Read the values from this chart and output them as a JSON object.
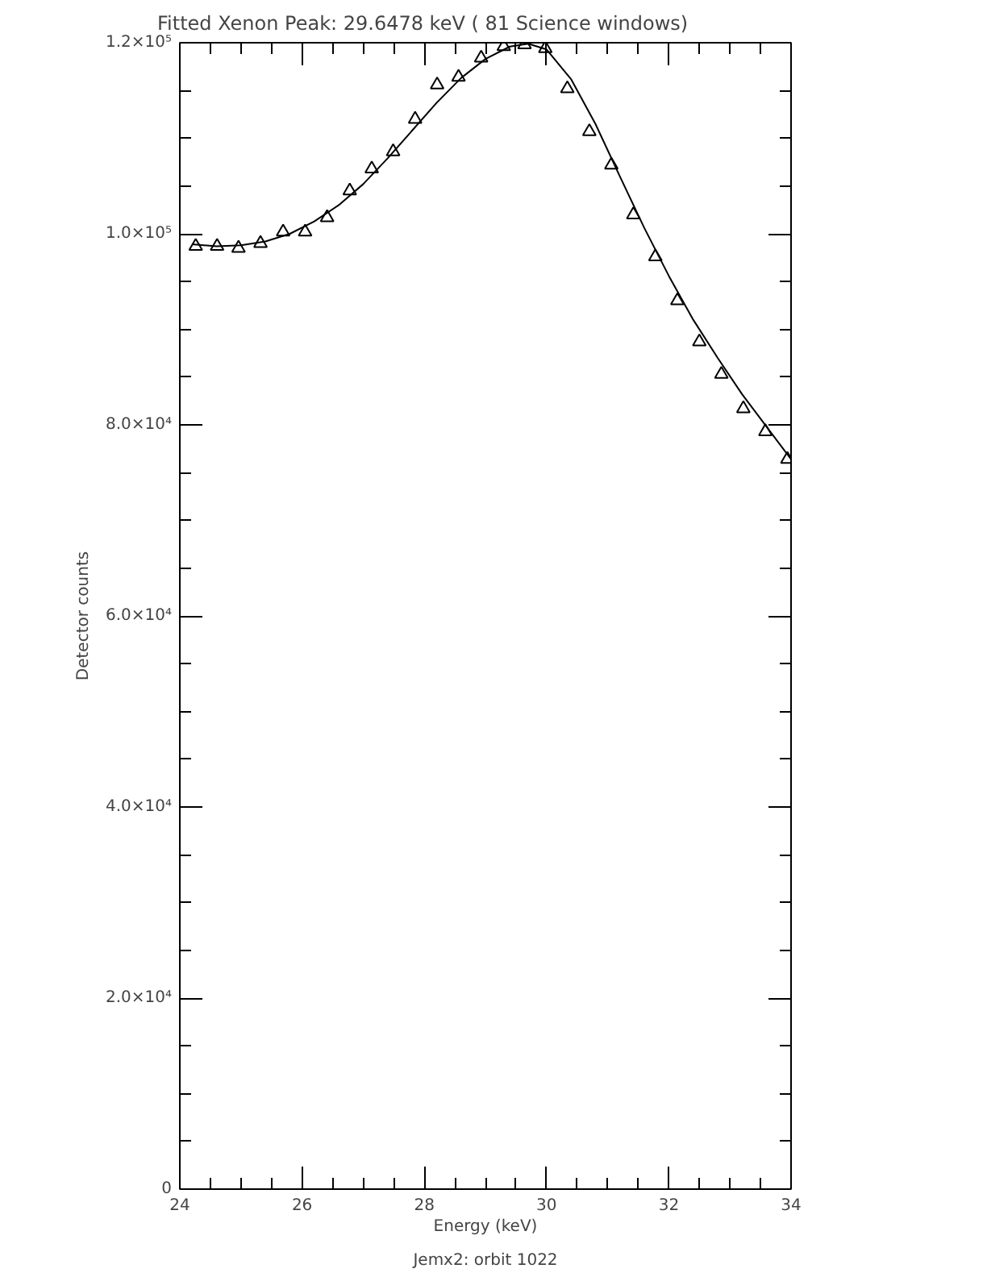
{
  "chart_data": {
    "type": "scatter",
    "title": "Fitted Xenon Peak:        29.6478 keV (      81 Science windows)",
    "xlabel": "Energy (keV)",
    "ylabel": "Detector counts",
    "annotations": [
      "Jemx2: orbit 1022"
    ],
    "xlim": [
      24,
      34
    ],
    "xticks": [
      24,
      26,
      28,
      30,
      32,
      34
    ],
    "ylim": [
      0,
      120000
    ],
    "yticks": [
      {
        "value": 0,
        "label": "0"
      },
      {
        "value": 20000,
        "label": "2.0×10⁴"
      },
      {
        "value": 40000,
        "label": "4.0×10⁴"
      },
      {
        "value": 60000,
        "label": "6.0×10⁴"
      },
      {
        "value": 80000,
        "label": "8.0×10⁴"
      },
      {
        "value": 100000,
        "label": "1.0×10⁵"
      },
      {
        "value": 120000,
        "label": "1.2×10⁵"
      }
    ],
    "grid": false,
    "series": [
      {
        "color": "#000000",
        "marker": "triangle",
        "x": [
          24.26,
          24.61,
          24.96,
          25.32,
          25.69,
          26.05,
          26.41,
          26.78,
          27.14,
          27.49,
          27.85,
          28.21,
          28.56,
          28.93,
          29.3,
          29.64,
          29.98,
          30.34,
          30.7,
          31.06,
          31.42,
          31.78,
          32.14,
          32.5,
          32.86,
          33.22,
          33.58,
          33.94
        ],
        "values": [
          98700,
          98700,
          98500,
          99000,
          100200,
          100200,
          101700,
          104500,
          106800,
          108600,
          112000,
          115600,
          116400,
          118400,
          119600,
          119800,
          119400,
          115200,
          110700,
          107200,
          102000,
          97600,
          93000,
          88700,
          85300,
          81700,
          79300,
          76400
        ]
      },
      {
        "type": "line",
        "color": "#000000",
        "marker": "none",
        "line_style": "solid",
        "x": [
          24.2,
          24.6,
          25.0,
          25.4,
          25.8,
          26.2,
          26.6,
          27.0,
          27.4,
          27.8,
          28.2,
          28.6,
          29.0,
          29.4,
          29.7,
          30.0,
          30.4,
          30.8,
          31.2,
          31.6,
          32.0,
          32.4,
          32.8,
          33.2,
          33.6,
          34.0
        ],
        "values": [
          98900,
          98700,
          98800,
          99200,
          100000,
          101300,
          103000,
          105200,
          107900,
          110800,
          113700,
          116300,
          118300,
          119600,
          119900,
          119300,
          116200,
          111500,
          106000,
          100600,
          95600,
          91000,
          87000,
          83200,
          79800,
          76400
        ]
      }
    ]
  }
}
